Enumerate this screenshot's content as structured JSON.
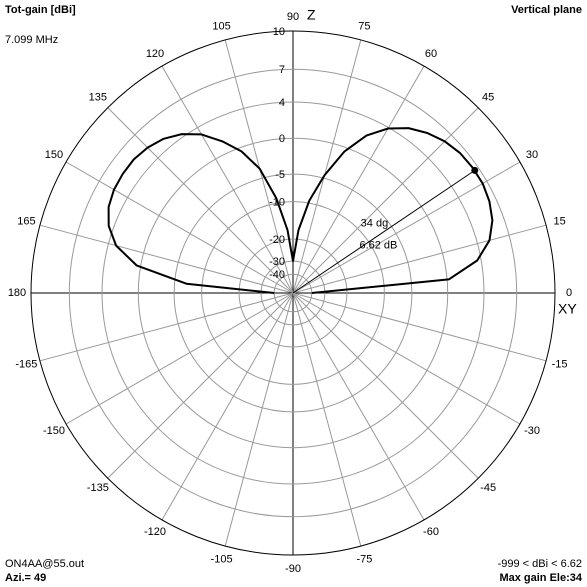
{
  "chart_data": {
    "type": "polar",
    "title": "Tot-gain [dBi]",
    "subtitle": "Vertical plane",
    "frequency": "7.099 MHz",
    "file": "ON4AA@55.out",
    "azimuth": "Azi.= 49",
    "range": "-999 < dBi < 6.62",
    "max_gain_label": "Max gain Ele:34",
    "vertical_axis_label": "Z",
    "horizontal_axis_label": "XY",
    "angles": [
      0,
      5,
      10,
      15,
      20,
      25,
      30,
      35,
      40,
      45,
      50,
      55,
      60,
      65,
      70,
      75,
      80,
      85,
      90,
      95,
      100,
      105,
      110,
      115,
      120,
      125,
      130,
      135,
      140,
      145,
      150,
      155,
      160,
      165,
      170,
      175,
      180
    ],
    "values": [
      -40,
      0.2,
      3.6,
      5.2,
      6.0,
      6.4,
      6.6,
      6.6,
      6.5,
      6.2,
      5.7,
      5.0,
      3.9,
      2.2,
      -0.5,
      -4.5,
      -9.5,
      -17,
      -30,
      -17,
      -9,
      -3.5,
      -0.5,
      1.5,
      3.2,
      4.3,
      5.0,
      5.4,
      5.6,
      5.6,
      5.5,
      5.2,
      4.5,
      3.2,
      0.5,
      -7,
      -40
    ],
    "color": "#000000",
    "max": {
      "angle": 34,
      "value": 6.62,
      "angle_label": "34 dg",
      "value_label": "6.62 dB"
    },
    "rlim": [
      -40,
      10
    ],
    "rticks": [
      10,
      7,
      4,
      0,
      -5,
      -10,
      -20,
      -30,
      -40
    ],
    "angle_ticks": [
      0,
      15,
      30,
      45,
      60,
      75,
      90,
      105,
      120,
      135,
      150,
      165,
      180,
      -165,
      -150,
      -135,
      -120,
      -105,
      -90,
      -75,
      -60,
      -45,
      -30,
      -15
    ]
  }
}
